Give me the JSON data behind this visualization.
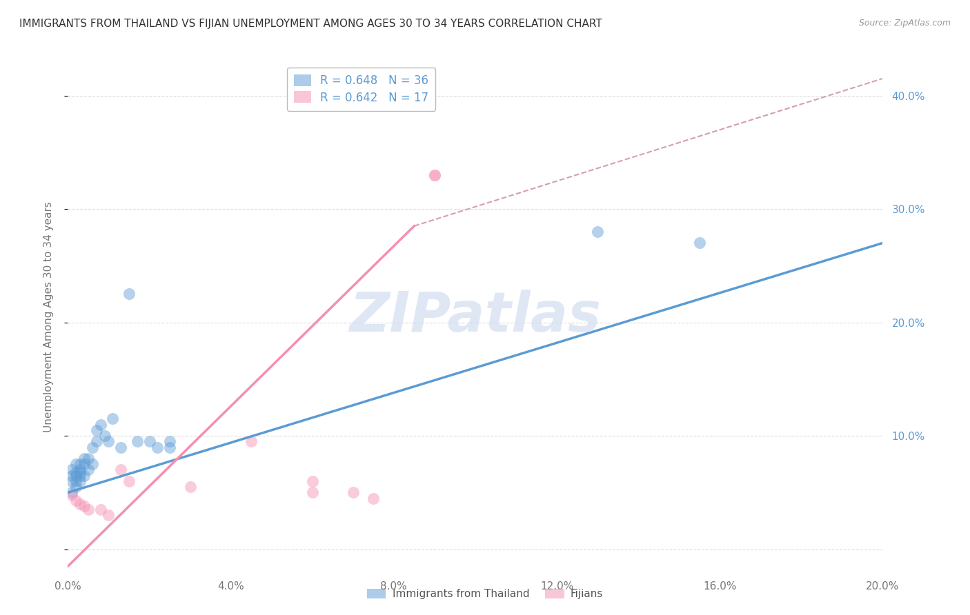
{
  "title": "IMMIGRANTS FROM THAILAND VS FIJIAN UNEMPLOYMENT AMONG AGES 30 TO 34 YEARS CORRELATION CHART",
  "source": "Source: ZipAtlas.com",
  "ylabel": "Unemployment Among Ages 30 to 34 years",
  "xlim": [
    0.0,
    0.2
  ],
  "ylim": [
    -0.02,
    0.43
  ],
  "xticks": [
    0.0,
    0.04,
    0.08,
    0.12,
    0.16,
    0.2
  ],
  "yticks": [
    0.0,
    0.1,
    0.2,
    0.3,
    0.4
  ],
  "xtick_labels": [
    "0.0%",
    "4.0%",
    "8.0%",
    "12.0%",
    "16.0%",
    "20.0%"
  ],
  "ytick_labels": [
    "",
    "10.0%",
    "20.0%",
    "30.0%",
    "40.0%"
  ],
  "legend_R_blue": "0.648",
  "legend_N_blue": "36",
  "legend_R_pink": "0.642",
  "legend_N_pink": "17",
  "legend_label_blue": "Immigrants from Thailand",
  "legend_label_pink": "Fijians",
  "blue_scatter_x": [
    0.001,
    0.001,
    0.001,
    0.001,
    0.002,
    0.002,
    0.002,
    0.002,
    0.002,
    0.003,
    0.003,
    0.003,
    0.003,
    0.003,
    0.004,
    0.004,
    0.004,
    0.005,
    0.005,
    0.006,
    0.006,
    0.007,
    0.007,
    0.008,
    0.009,
    0.01,
    0.011,
    0.013,
    0.015,
    0.017,
    0.02,
    0.022,
    0.025,
    0.025,
    0.13,
    0.155
  ],
  "blue_scatter_y": [
    0.05,
    0.06,
    0.065,
    0.07,
    0.055,
    0.06,
    0.065,
    0.068,
    0.075,
    0.06,
    0.065,
    0.068,
    0.07,
    0.075,
    0.065,
    0.075,
    0.08,
    0.07,
    0.08,
    0.075,
    0.09,
    0.095,
    0.105,
    0.11,
    0.1,
    0.095,
    0.115,
    0.09,
    0.225,
    0.095,
    0.095,
    0.09,
    0.095,
    0.09,
    0.28,
    0.27
  ],
  "pink_scatter_x": [
    0.001,
    0.002,
    0.003,
    0.004,
    0.005,
    0.008,
    0.01,
    0.013,
    0.015,
    0.03,
    0.045,
    0.06,
    0.06,
    0.07,
    0.075,
    0.09,
    0.09
  ],
  "pink_scatter_y": [
    0.048,
    0.043,
    0.04,
    0.038,
    0.035,
    0.035,
    0.03,
    0.07,
    0.06,
    0.055,
    0.095,
    0.05,
    0.06,
    0.05,
    0.045,
    0.33,
    0.33
  ],
  "blue_line_x": [
    0.0,
    0.2
  ],
  "blue_line_y": [
    0.05,
    0.27
  ],
  "pink_line_x": [
    0.0,
    0.085
  ],
  "pink_line_y": [
    -0.015,
    0.285
  ],
  "dashed_line_x": [
    0.085,
    0.2
  ],
  "dashed_line_y": [
    0.285,
    0.415
  ],
  "blue_color": "#5b9bd5",
  "pink_color": "#f48fb1",
  "dashed_color": "#d4a0a8",
  "watermark": "ZIPatlas",
  "watermark_color": "#ccd8ee",
  "background_color": "#ffffff",
  "title_fontsize": 11,
  "axis_label_fontsize": 11,
  "tick_fontsize": 11,
  "legend_fontsize": 12,
  "right_tick_color": "#5b9bd5",
  "grid_color": "#cccccc"
}
